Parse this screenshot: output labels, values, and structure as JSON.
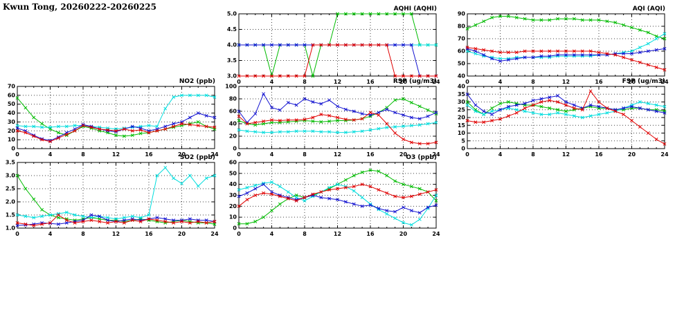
{
  "header": {
    "title": "Kwun Tong, 20260222-20260225"
  },
  "series_colors": {
    "green": "#00bb00",
    "red": "#e00000",
    "blue": "#1212d0",
    "cyan": "#00dddd"
  },
  "chart_data": [
    {
      "id": "aqhi",
      "type": "line",
      "title": "AQHI (AQHI)",
      "xlim": [
        0,
        24
      ],
      "xticks": [
        0,
        4,
        8,
        12,
        16,
        20,
        24
      ],
      "x_start": 0,
      "x_step": 1,
      "ylim": [
        3,
        5
      ],
      "yticks": [
        3,
        3.5,
        4,
        4.5,
        5
      ],
      "ytick_labels": [
        "3.0",
        "3.5",
        "4.0",
        "4.5",
        "5.0"
      ],
      "series": [
        {
          "name": "series-green",
          "color": "green",
          "y": [
            4,
            4,
            4,
            4,
            3,
            4,
            4,
            4,
            4,
            3,
            4,
            4,
            5,
            5,
            5,
            5,
            5,
            5,
            5,
            5,
            5,
            5,
            4,
            4,
            4
          ]
        },
        {
          "name": "series-cyan",
          "color": "cyan",
          "y": [
            4,
            4,
            4,
            4,
            4,
            4,
            4,
            4,
            4,
            4,
            4,
            4,
            4,
            4,
            4,
            4,
            4,
            4,
            4,
            4,
            4,
            4,
            4,
            4,
            4
          ]
        },
        {
          "name": "series-blue",
          "color": "blue",
          "y": [
            4,
            4,
            4,
            4,
            4,
            4,
            4,
            4,
            4,
            4,
            4,
            4,
            4,
            4,
            4,
            4,
            4,
            4,
            4,
            4,
            4,
            4,
            3,
            3,
            3
          ]
        },
        {
          "name": "series-red",
          "color": "red",
          "y": [
            3,
            3,
            3,
            3,
            3,
            3,
            3,
            3,
            3,
            4,
            4,
            4,
            4,
            4,
            4,
            4,
            4,
            4,
            4,
            3,
            3,
            3,
            3,
            3,
            3
          ]
        }
      ]
    },
    {
      "id": "aqi",
      "type": "line",
      "title": "AQI (AQI)",
      "xlim": [
        0,
        24
      ],
      "xticks": [
        0,
        4,
        8,
        12,
        16,
        20,
        24
      ],
      "x_start": 0,
      "x_step": 1,
      "ylim": [
        40,
        90
      ],
      "yticks": [
        40,
        50,
        60,
        70,
        80,
        90
      ],
      "ytick_labels": [
        "40",
        "50",
        "60",
        "70",
        "80",
        "90"
      ],
      "series": [
        {
          "name": "series-green",
          "color": "green",
          "y": [
            78,
            81,
            84,
            87,
            88,
            88,
            87,
            86,
            85,
            85,
            85,
            86,
            86,
            86,
            85,
            85,
            85,
            84,
            83,
            81,
            79,
            77,
            75,
            72,
            70
          ]
        },
        {
          "name": "series-cyan",
          "color": "cyan",
          "y": [
            60,
            58,
            56,
            55,
            54,
            54,
            55,
            55,
            55,
            55,
            55,
            56,
            56,
            56,
            56,
            56,
            57,
            57,
            58,
            59,
            60,
            63,
            66,
            70,
            74
          ]
        },
        {
          "name": "series-blue",
          "color": "blue",
          "y": [
            62,
            60,
            57,
            54,
            52,
            53,
            54,
            55,
            55,
            56,
            56,
            57,
            57,
            57,
            57,
            57,
            57,
            57,
            58,
            58,
            58,
            59,
            60,
            61,
            62
          ]
        },
        {
          "name": "series-red",
          "color": "red",
          "y": [
            63,
            62,
            61,
            60,
            59,
            59,
            59,
            60,
            60,
            60,
            60,
            60,
            60,
            60,
            60,
            60,
            59,
            58,
            57,
            55,
            53,
            51,
            49,
            47,
            45
          ]
        }
      ]
    },
    {
      "id": "no2",
      "type": "line",
      "title": "NO2 (ppb)",
      "xlim": [
        0,
        24
      ],
      "xticks": [
        0,
        4,
        8,
        12,
        16,
        20,
        24
      ],
      "x_start": 0,
      "x_step": 1,
      "ylim": [
        0,
        70
      ],
      "yticks": [
        0,
        10,
        20,
        30,
        40,
        50,
        60,
        70
      ],
      "ytick_labels": [
        "0",
        "10",
        "20",
        "30",
        "40",
        "50",
        "60",
        "70"
      ],
      "series": [
        {
          "name": "series-green",
          "color": "green",
          "y": [
            57,
            46,
            35,
            28,
            22,
            18,
            15,
            20,
            25,
            23,
            20,
            18,
            15,
            14,
            15,
            17,
            18,
            20,
            22,
            24,
            26,
            28,
            30,
            25,
            22
          ]
        },
        {
          "name": "series-cyan",
          "color": "cyan",
          "y": [
            26,
            25,
            25,
            24,
            24,
            25,
            25,
            26,
            26,
            25,
            24,
            23,
            22,
            23,
            24,
            25,
            26,
            25,
            45,
            58,
            60,
            60,
            60,
            60,
            58
          ]
        },
        {
          "name": "series-blue",
          "color": "blue",
          "y": [
            23,
            20,
            15,
            11,
            9,
            13,
            18,
            22,
            27,
            25,
            22,
            20,
            19,
            22,
            25,
            23,
            20,
            22,
            25,
            28,
            30,
            35,
            40,
            37,
            35
          ]
        },
        {
          "name": "series-red",
          "color": "red",
          "y": [
            20,
            18,
            14,
            10,
            8,
            12,
            16,
            20,
            26,
            24,
            22,
            21,
            20,
            22,
            20,
            21,
            18,
            20,
            22,
            25,
            28,
            27,
            26,
            25,
            24
          ]
        }
      ]
    },
    {
      "id": "rsp",
      "type": "line",
      "title": "RSP (ug/m3)",
      "xlim": [
        0,
        24
      ],
      "xticks": [
        0,
        4,
        8,
        12,
        16,
        20,
        24
      ],
      "x_start": 0,
      "x_step": 1,
      "ylim": [
        0,
        100
      ],
      "yticks": [
        0,
        20,
        40,
        60,
        80,
        100
      ],
      "ytick_labels": [
        "0",
        "20",
        "40",
        "60",
        "80",
        "100"
      ],
      "series": [
        {
          "name": "series-green",
          "color": "green",
          "y": [
            45,
            40,
            38,
            40,
            42,
            42,
            43,
            44,
            45,
            44,
            43,
            44,
            45,
            45,
            46,
            48,
            52,
            58,
            66,
            78,
            80,
            74,
            68,
            62,
            56
          ]
        },
        {
          "name": "series-cyan",
          "color": "cyan",
          "y": [
            30,
            28,
            27,
            26,
            26,
            27,
            27,
            28,
            28,
            28,
            27,
            27,
            26,
            26,
            27,
            28,
            30,
            32,
            34,
            35,
            36,
            37,
            38,
            40,
            42
          ]
        },
        {
          "name": "series-blue",
          "color": "blue",
          "y": [
            60,
            42,
            56,
            88,
            66,
            62,
            74,
            70,
            80,
            75,
            72,
            78,
            68,
            63,
            60,
            56,
            54,
            58,
            63,
            58,
            54,
            50,
            48,
            52,
            58
          ]
        },
        {
          "name": "series-red",
          "color": "red",
          "y": [
            52,
            40,
            42,
            44,
            46,
            45,
            46,
            46,
            47,
            50,
            55,
            53,
            50,
            47,
            46,
            48,
            58,
            54,
            40,
            25,
            15,
            10,
            8,
            8,
            10
          ]
        }
      ]
    },
    {
      "id": "fsp",
      "type": "line",
      "title": "FSP (ug/m3)",
      "xlim": [
        0,
        24
      ],
      "xticks": [
        0,
        4,
        8,
        12,
        16,
        20,
        24
      ],
      "x_start": 0,
      "x_step": 1,
      "ylim": [
        0,
        40
      ],
      "yticks": [
        0,
        5,
        10,
        15,
        20,
        25,
        30,
        35,
        40
      ],
      "ytick_labels": [
        "0",
        "5",
        "10",
        "15",
        "20",
        "25",
        "30",
        "35",
        "40"
      ],
      "series": [
        {
          "name": "series-green",
          "color": "green",
          "y": [
            30,
            25,
            22,
            26,
            29,
            30,
            29,
            28,
            28,
            27,
            26,
            25,
            24,
            25,
            26,
            27,
            26,
            26,
            25,
            25,
            26,
            26,
            25,
            25,
            24
          ]
        },
        {
          "name": "series-cyan",
          "color": "cyan",
          "y": [
            28,
            24,
            22,
            24,
            25,
            26,
            25,
            24,
            23,
            22,
            22,
            23,
            22,
            21,
            20,
            21,
            22,
            23,
            24,
            26,
            28,
            30,
            29,
            28,
            27
          ]
        },
        {
          "name": "series-blue",
          "color": "blue",
          "y": [
            35,
            28,
            24,
            22,
            25,
            27,
            28,
            29,
            31,
            32,
            33,
            34,
            30,
            28,
            26,
            28,
            27,
            26,
            25,
            26,
            27,
            26,
            25,
            24,
            23
          ]
        },
        {
          "name": "series-red",
          "color": "red",
          "y": [
            18,
            17,
            17,
            18,
            19,
            21,
            23,
            26,
            28,
            30,
            31,
            30,
            28,
            26,
            25,
            37,
            30,
            26,
            24,
            22,
            18,
            14,
            10,
            6,
            3
          ]
        }
      ]
    },
    {
      "id": "so2",
      "type": "line",
      "title": "SO2 (ppb)",
      "xlim": [
        0,
        24
      ],
      "xticks": [
        0,
        4,
        8,
        12,
        16,
        20,
        24
      ],
      "x_start": 0,
      "x_step": 1,
      "ylim": [
        1,
        3.5
      ],
      "yticks": [
        1,
        1.5,
        2,
        2.5,
        3,
        3.5
      ],
      "ytick_labels": [
        "1.0",
        "1.5",
        "2.0",
        "2.5",
        "3.0",
        "3.5"
      ],
      "series": [
        {
          "name": "series-green",
          "color": "green",
          "y": [
            3.0,
            2.5,
            2.1,
            1.7,
            1.5,
            1.4,
            1.35,
            1.3,
            1.35,
            1.4,
            1.35,
            1.3,
            1.3,
            1.25,
            1.3,
            1.35,
            1.3,
            1.25,
            1.2,
            1.25,
            1.3,
            1.25,
            1.2,
            1.2,
            1.15
          ]
        },
        {
          "name": "series-cyan",
          "color": "cyan",
          "y": [
            1.5,
            1.45,
            1.4,
            1.45,
            1.5,
            1.55,
            1.6,
            1.5,
            1.45,
            1.4,
            1.45,
            1.4,
            1.35,
            1.4,
            1.45,
            1.4,
            1.5,
            3.0,
            3.3,
            2.9,
            2.7,
            3.0,
            2.6,
            2.9,
            3.0
          ]
        },
        {
          "name": "series-blue",
          "color": "blue",
          "y": [
            1.1,
            1.12,
            1.15,
            1.2,
            1.18,
            1.15,
            1.2,
            1.25,
            1.3,
            1.5,
            1.45,
            1.3,
            1.25,
            1.3,
            1.35,
            1.3,
            1.35,
            1.4,
            1.35,
            1.3,
            1.3,
            1.35,
            1.3,
            1.3,
            1.25
          ]
        },
        {
          "name": "series-red",
          "color": "red",
          "y": [
            1.2,
            1.15,
            1.1,
            1.15,
            1.2,
            1.5,
            1.3,
            1.2,
            1.25,
            1.3,
            1.25,
            1.2,
            1.25,
            1.2,
            1.3,
            1.25,
            1.35,
            1.3,
            1.25,
            1.2,
            1.25,
            1.2,
            1.25,
            1.2,
            1.25
          ]
        }
      ]
    },
    {
      "id": "o3",
      "type": "line",
      "title": "O3 (ppb)",
      "xlim": [
        0,
        24
      ],
      "xticks": [
        0,
        4,
        8,
        12,
        16,
        20,
        24
      ],
      "x_start": 0,
      "x_step": 1,
      "ylim": [
        0,
        60
      ],
      "yticks": [
        0,
        10,
        20,
        30,
        40,
        50,
        60
      ],
      "ytick_labels": [
        "0",
        "10",
        "20",
        "30",
        "40",
        "50",
        "60"
      ],
      "series": [
        {
          "name": "series-green",
          "color": "green",
          "y": [
            4,
            4,
            6,
            10,
            16,
            22,
            27,
            30,
            28,
            30,
            33,
            36,
            40,
            44,
            48,
            51,
            53,
            52,
            48,
            43,
            40,
            38,
            36,
            33,
            25
          ]
        },
        {
          "name": "series-cyan",
          "color": "cyan",
          "y": [
            35,
            37,
            39,
            41,
            42,
            38,
            33,
            28,
            25,
            29,
            33,
            37,
            40,
            38,
            34,
            28,
            22,
            17,
            13,
            9,
            5,
            3,
            8,
            18,
            30
          ]
        },
        {
          "name": "series-blue",
          "color": "blue",
          "y": [
            29,
            32,
            36,
            40,
            33,
            30,
            28,
            26,
            28,
            30,
            28,
            27,
            26,
            24,
            22,
            20,
            21,
            18,
            16,
            15,
            19,
            16,
            14,
            19,
            21
          ]
        },
        {
          "name": "series-red",
          "color": "red",
          "y": [
            20,
            26,
            30,
            32,
            31,
            29,
            27,
            25,
            28,
            31,
            33,
            35,
            36,
            37,
            38,
            40,
            38,
            35,
            32,
            29,
            28,
            29,
            31,
            33,
            35
          ]
        }
      ]
    }
  ]
}
